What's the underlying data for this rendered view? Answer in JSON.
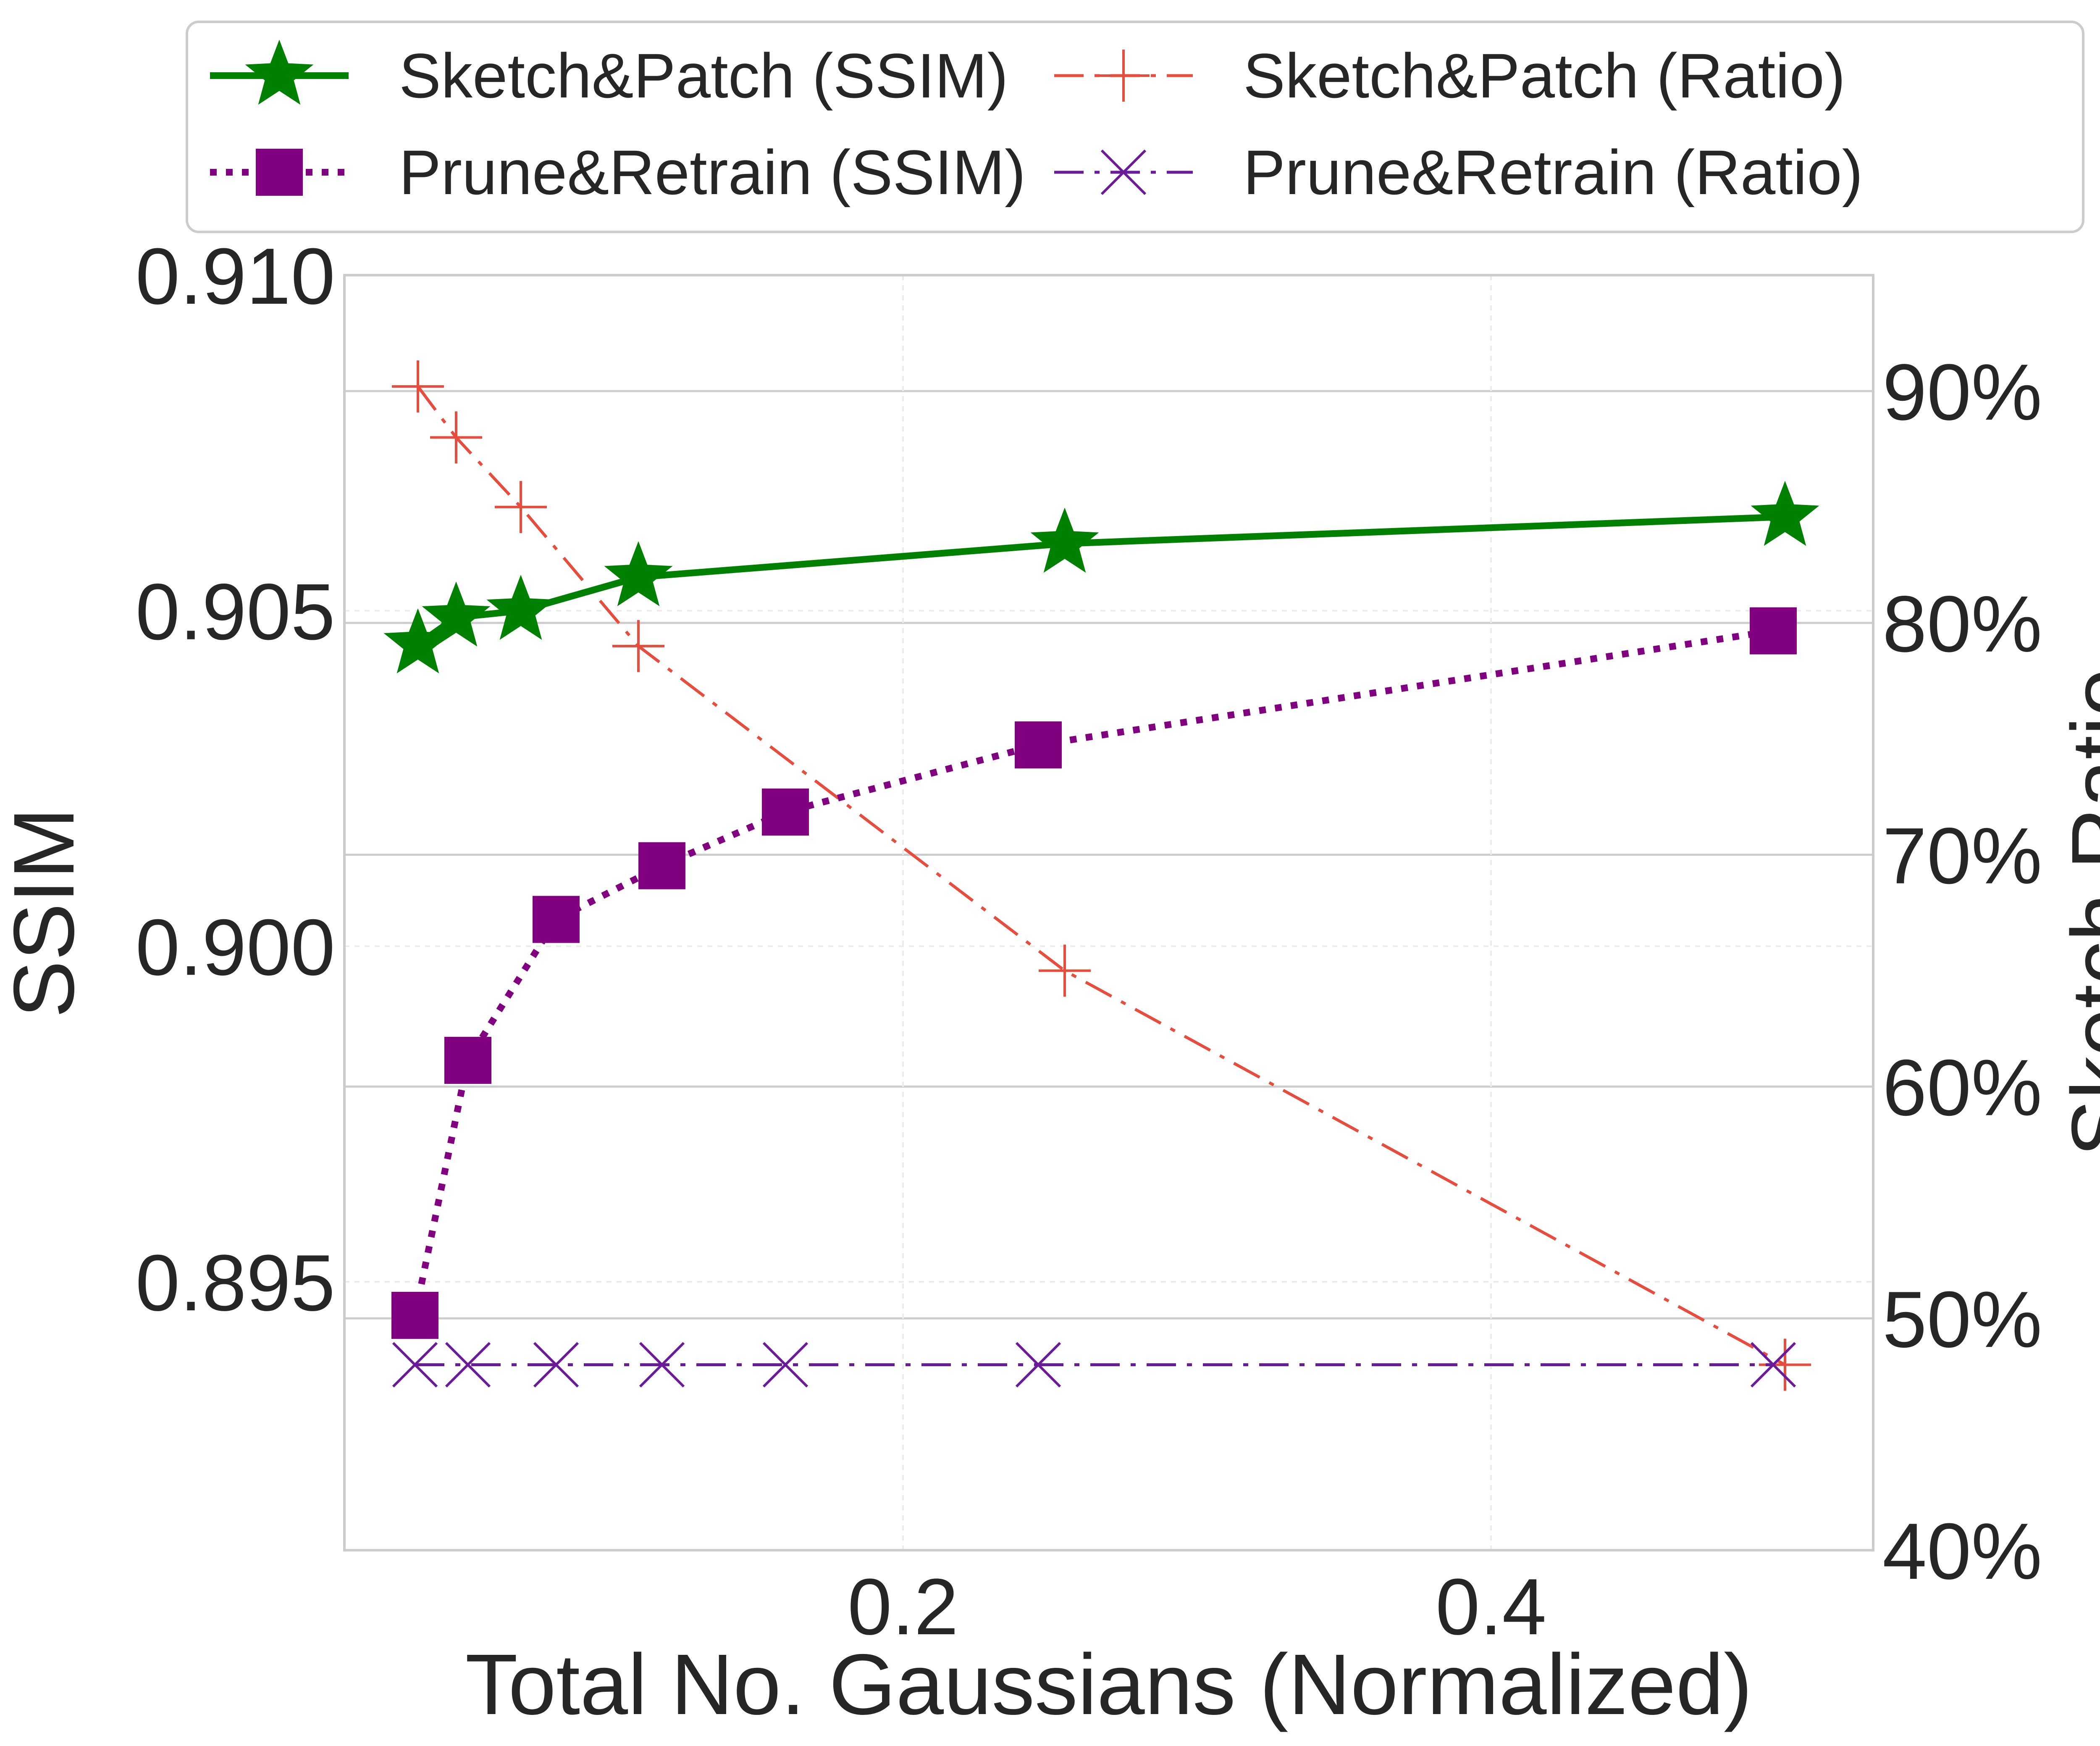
{
  "chart_data": {
    "type": "line",
    "x_axis": {
      "label": "Total No. Gaussians (Normalized)",
      "range": [
        0.01,
        0.53
      ],
      "ticks": [
        0.2,
        0.4
      ],
      "tick_labels": [
        "0.2",
        "0.4"
      ]
    },
    "y_left": {
      "label": "SSIM",
      "range": [
        0.891,
        0.91
      ],
      "ticks": [
        0.895,
        0.9,
        0.905,
        0.91
      ],
      "tick_labels": [
        "0.895",
        "0.900",
        "0.905",
        "0.910"
      ]
    },
    "y_right": {
      "label": "Sketch Ratio",
      "range": [
        40,
        95
      ],
      "ticks": [
        40,
        50,
        60,
        70,
        80,
        90
      ],
      "tick_labels": [
        "40%",
        "50%",
        "60%",
        "70%",
        "80%",
        "90%"
      ]
    },
    "grid": true,
    "legend": {
      "position": "top, above plot",
      "columns": 2
    },
    "series": [
      {
        "name": "Sketch&Patch (SSIM)",
        "axis": "left",
        "color": "#008000",
        "line_style": "solid",
        "marker": "star",
        "x": [
          0.035,
          0.048,
          0.07,
          0.11,
          0.255,
          0.5
        ],
        "y": [
          0.9045,
          0.9049,
          0.905,
          0.9055,
          0.906,
          0.9064
        ]
      },
      {
        "name": "Prune&Retrain (SSIM)",
        "axis": "left",
        "color": "#800080",
        "line_style": "dotted",
        "marker": "square",
        "x": [
          0.034,
          0.052,
          0.082,
          0.118,
          0.16,
          0.246,
          0.496
        ],
        "y": [
          0.8945,
          0.8983,
          0.9004,
          0.9012,
          0.902,
          0.903,
          0.9047
        ]
      },
      {
        "name": "Sketch&Patch (Ratio)",
        "axis": "right",
        "color": "#e74c3c",
        "line_style": "dashdot",
        "marker": "plus",
        "x": [
          0.035,
          0.048,
          0.07,
          0.11,
          0.255,
          0.5
        ],
        "y": [
          90.2,
          88,
          85,
          79,
          65,
          48
        ]
      },
      {
        "name": "Prune&Retrain (Ratio)",
        "axis": "right",
        "color": "#6a1b9a",
        "line_style": "dashdot",
        "marker": "x",
        "x": [
          0.034,
          0.052,
          0.082,
          0.118,
          0.16,
          0.246,
          0.496
        ],
        "y": [
          48,
          48,
          48,
          48,
          48,
          48,
          48
        ]
      }
    ]
  }
}
